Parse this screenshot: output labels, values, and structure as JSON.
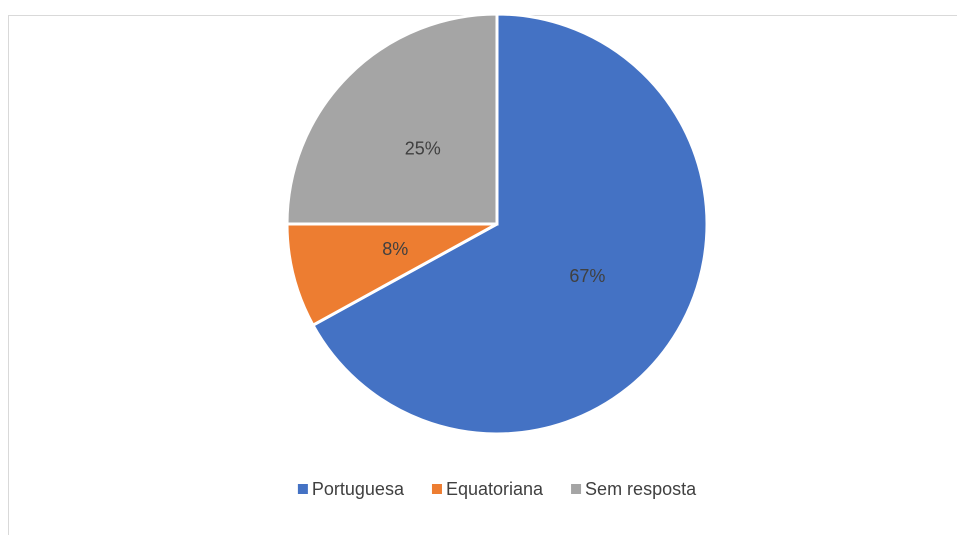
{
  "chart_data": {
    "type": "pie",
    "categories": [
      "Portuguesa",
      "Equatoriana",
      "Sem resposta"
    ],
    "values": [
      67,
      8,
      25
    ],
    "value_labels": [
      "67%",
      "8%",
      "25%"
    ],
    "colors": [
      "#4472c4",
      "#ed7d31",
      "#a5a5a5"
    ],
    "legend": "bottom"
  }
}
